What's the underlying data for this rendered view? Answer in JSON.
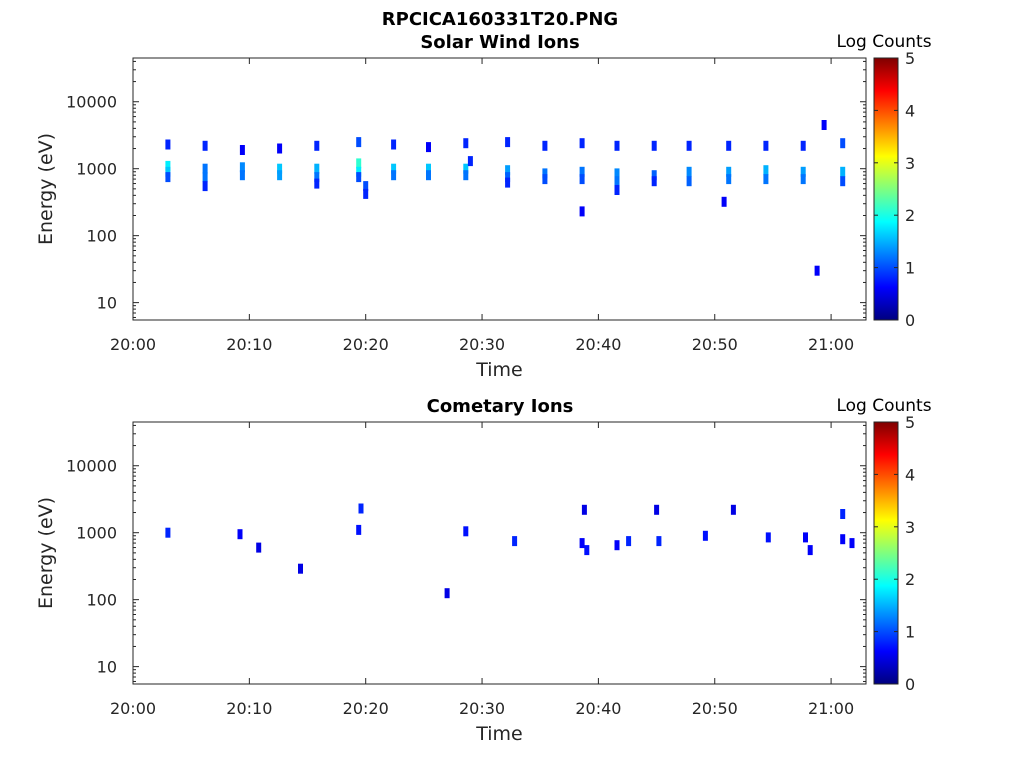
{
  "figure_title": "RPCICA160331T20.PNG",
  "colormap": [
    "#00007f",
    "#0000ff",
    "#007fff",
    "#00ffff",
    "#7fff7f",
    "#ffff00",
    "#ff7f00",
    "#ff0000",
    "#7f0000"
  ],
  "chart_data": [
    {
      "type": "heatmap",
      "title": "Solar Wind Ions",
      "xlabel": "Time",
      "ylabel": "Energy (eV)",
      "x_ticks": [
        "20:00",
        "20:10",
        "20:20",
        "20:30",
        "20:40",
        "20:50",
        "21:00"
      ],
      "x_tick_minutes": [
        0,
        10,
        20,
        30,
        40,
        50,
        60
      ],
      "xlim_minutes": [
        0,
        63
      ],
      "y_scale": "log",
      "ylim": [
        5.5,
        45000
      ],
      "y_ticks": [
        "10",
        "100",
        "1000",
        "10000"
      ],
      "y_tick_values": [
        10,
        100,
        1000,
        10000
      ],
      "colorbar": {
        "label": "Log Counts",
        "min": 0,
        "max": 5,
        "ticks": [
          "0",
          "1",
          "2",
          "3",
          "4",
          "5"
        ]
      },
      "cells": [
        [
          3.0,
          2300,
          0.8
        ],
        [
          3.0,
          1100,
          1.8
        ],
        [
          3.0,
          900,
          1.6
        ],
        [
          3.0,
          750,
          1.0
        ],
        [
          6.2,
          2200,
          0.8
        ],
        [
          6.2,
          1000,
          1.2
        ],
        [
          6.2,
          750,
          1.2
        ],
        [
          6.2,
          550,
          0.8
        ],
        [
          9.4,
          1900,
          0.6
        ],
        [
          9.4,
          1050,
          1.3
        ],
        [
          9.4,
          800,
          1.2
        ],
        [
          12.6,
          2000,
          0.6
        ],
        [
          12.6,
          1000,
          1.6
        ],
        [
          12.6,
          800,
          1.4
        ],
        [
          15.8,
          2200,
          0.8
        ],
        [
          15.8,
          1000,
          1.5
        ],
        [
          15.8,
          750,
          1.2
        ],
        [
          15.8,
          600,
          0.8
        ],
        [
          19.4,
          2500,
          1.0
        ],
        [
          19.4,
          1200,
          2.1
        ],
        [
          19.4,
          900,
          1.8
        ],
        [
          19.4,
          750,
          1.0
        ],
        [
          20.0,
          550,
          1.0
        ],
        [
          20.0,
          420,
          0.8
        ],
        [
          22.4,
          2300,
          0.8
        ],
        [
          22.4,
          1000,
          1.6
        ],
        [
          22.4,
          800,
          1.2
        ],
        [
          25.4,
          2100,
          0.6
        ],
        [
          25.4,
          1000,
          1.6
        ],
        [
          25.4,
          800,
          1.2
        ],
        [
          28.6,
          2400,
          0.8
        ],
        [
          28.6,
          1000,
          1.6
        ],
        [
          28.6,
          800,
          1.2
        ],
        [
          29.0,
          1300,
          0.8
        ],
        [
          32.2,
          2500,
          0.8
        ],
        [
          32.2,
          950,
          1.4
        ],
        [
          32.2,
          750,
          1.1
        ],
        [
          32.2,
          620,
          0.8
        ],
        [
          35.4,
          2200,
          0.8
        ],
        [
          35.4,
          850,
          1.2
        ],
        [
          35.4,
          700,
          1.0
        ],
        [
          38.6,
          2400,
          0.8
        ],
        [
          38.6,
          900,
          1.2
        ],
        [
          38.6,
          700,
          1.0
        ],
        [
          38.6,
          230,
          0.6
        ],
        [
          41.6,
          2200,
          0.8
        ],
        [
          41.6,
          850,
          1.3
        ],
        [
          41.6,
          650,
          1.2
        ],
        [
          41.6,
          480,
          0.8
        ],
        [
          44.8,
          2200,
          0.8
        ],
        [
          44.8,
          800,
          1.1
        ],
        [
          44.8,
          650,
          0.8
        ],
        [
          47.8,
          2200,
          0.8
        ],
        [
          47.8,
          900,
          1.3
        ],
        [
          47.8,
          650,
          1.1
        ],
        [
          51.2,
          2200,
          0.8
        ],
        [
          51.2,
          900,
          1.4
        ],
        [
          51.2,
          700,
          1.2
        ],
        [
          50.8,
          320,
          0.6
        ],
        [
          54.4,
          2200,
          0.8
        ],
        [
          54.4,
          950,
          1.5
        ],
        [
          54.4,
          700,
          1.2
        ],
        [
          57.6,
          2200,
          0.8
        ],
        [
          57.6,
          900,
          1.4
        ],
        [
          57.6,
          700,
          1.2
        ],
        [
          58.8,
          30,
          0.6
        ],
        [
          59.4,
          4500,
          0.6
        ],
        [
          61.0,
          2400,
          1.0
        ],
        [
          61.0,
          900,
          1.5
        ],
        [
          61.0,
          650,
          1.0
        ]
      ]
    },
    {
      "type": "heatmap",
      "title": "Cometary Ions",
      "xlabel": "Time",
      "ylabel": "Energy (eV)",
      "x_ticks": [
        "20:00",
        "20:10",
        "20:20",
        "20:30",
        "20:40",
        "20:50",
        "21:00"
      ],
      "x_tick_minutes": [
        0,
        10,
        20,
        30,
        40,
        50,
        60
      ],
      "xlim_minutes": [
        0,
        63
      ],
      "y_scale": "log",
      "ylim": [
        5.5,
        45000
      ],
      "y_ticks": [
        "10",
        "100",
        "1000",
        "10000"
      ],
      "y_tick_values": [
        10,
        100,
        1000,
        10000
      ],
      "colorbar": {
        "label": "Log Counts",
        "min": 0,
        "max": 5,
        "ticks": [
          "0",
          "1",
          "2",
          "3",
          "4",
          "5"
        ]
      },
      "cells": [
        [
          3.0,
          1000,
          0.8
        ],
        [
          9.2,
          950,
          0.6
        ],
        [
          10.8,
          600,
          0.5
        ],
        [
          14.4,
          290,
          0.5
        ],
        [
          19.4,
          1100,
          0.7
        ],
        [
          19.6,
          2300,
          0.8
        ],
        [
          27.0,
          125,
          0.5
        ],
        [
          28.6,
          1050,
          0.7
        ],
        [
          32.8,
          750,
          0.8
        ],
        [
          38.6,
          700,
          0.6
        ],
        [
          39.0,
          550,
          0.7
        ],
        [
          38.8,
          2200,
          0.5
        ],
        [
          41.6,
          650,
          0.6
        ],
        [
          42.6,
          750,
          0.8
        ],
        [
          45.2,
          750,
          0.8
        ],
        [
          45.0,
          2200,
          0.5
        ],
        [
          49.2,
          900,
          0.7
        ],
        [
          51.6,
          2200,
          0.5
        ],
        [
          54.6,
          850,
          0.7
        ],
        [
          57.8,
          850,
          0.6
        ],
        [
          58.2,
          550,
          0.6
        ],
        [
          61.0,
          1900,
          0.8
        ],
        [
          61.0,
          800,
          0.6
        ],
        [
          61.8,
          700,
          0.6
        ]
      ]
    }
  ]
}
